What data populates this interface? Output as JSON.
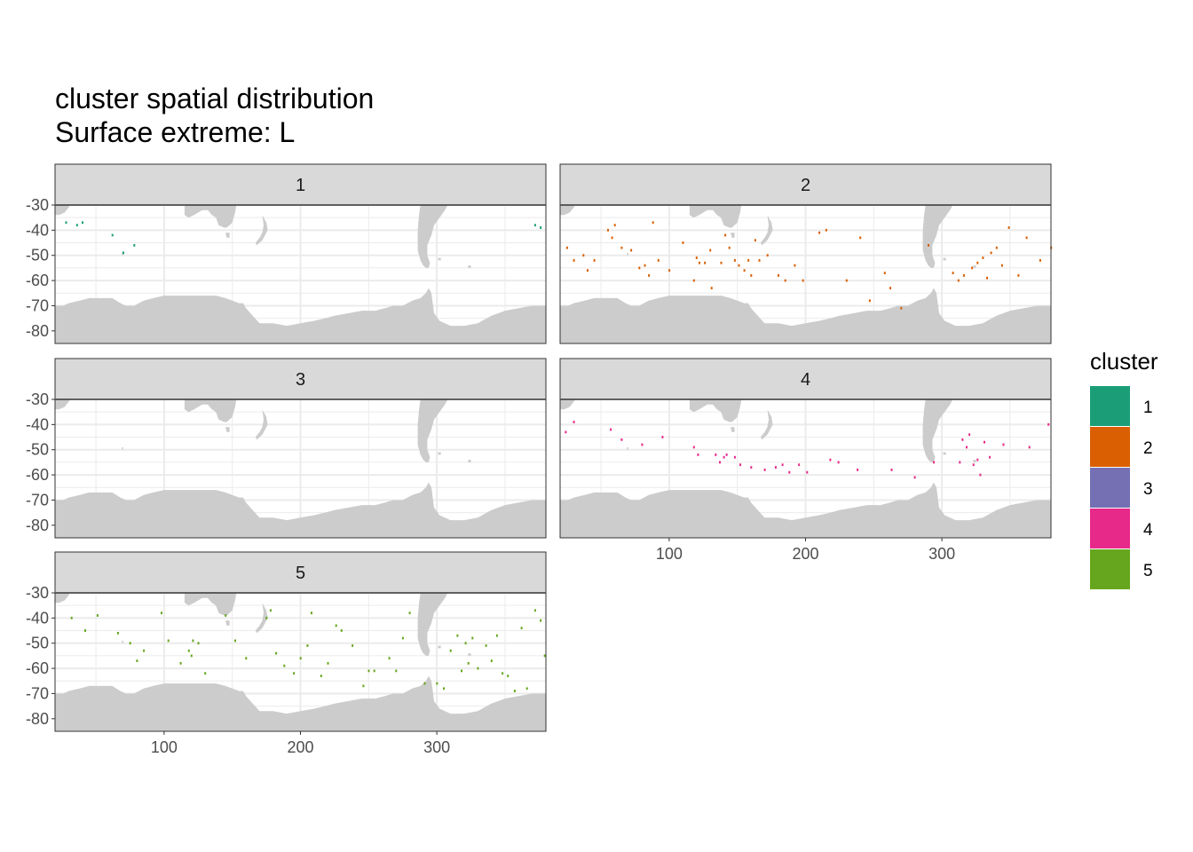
{
  "title": "cluster spatial distribution",
  "subtitle": "Surface extreme: L",
  "colors": {
    "cluster_1": "#1b9e77",
    "cluster_2": "#d95f02",
    "cluster_3": "#7570b3",
    "cluster_4": "#e7298a",
    "cluster_5": "#66a61e",
    "land": "#cccccc",
    "grid": "#ebebeb",
    "strip_background": "#d9d9d9"
  },
  "chart_data": {
    "type": "heatmap",
    "title": "cluster spatial distribution",
    "subtitle": "Surface extreme: L",
    "facet_variable": "cluster",
    "facets": [
      "1",
      "2",
      "3",
      "4",
      "5"
    ],
    "x_ticks": [
      100,
      200,
      300
    ],
    "y_ticks": [
      -30,
      -40,
      -50,
      -60,
      -70,
      -80
    ],
    "y_tick_labels": [
      "-30",
      "-40",
      "-50",
      "-60",
      "-70",
      "-80"
    ],
    "xlim": [
      20,
      380
    ],
    "ylim": [
      -85,
      -30
    ],
    "grid": true,
    "legend": {
      "title": "cluster",
      "position": "right",
      "entries": [
        "1",
        "2",
        "3",
        "4",
        "5"
      ]
    },
    "points": {
      "1": [
        [
          28,
          -37
        ],
        [
          36,
          -38
        ],
        [
          40,
          -37
        ],
        [
          62,
          -42
        ],
        [
          70,
          -49
        ],
        [
          78,
          -46
        ],
        [
          372,
          -38
        ],
        [
          376,
          -39
        ]
      ],
      "2": [
        [
          25,
          -47
        ],
        [
          30,
          -52
        ],
        [
          37,
          -50
        ],
        [
          40,
          -56
        ],
        [
          45,
          -52
        ],
        [
          55,
          -40
        ],
        [
          58,
          -43
        ],
        [
          60,
          -38
        ],
        [
          65,
          -47
        ],
        [
          72,
          -48
        ],
        [
          78,
          -55
        ],
        [
          82,
          -54
        ],
        [
          85,
          -58
        ],
        [
          88,
          -37
        ],
        [
          92,
          -52
        ],
        [
          100,
          -56
        ],
        [
          110,
          -45
        ],
        [
          118,
          -60
        ],
        [
          120,
          -51
        ],
        [
          122,
          -53
        ],
        [
          126,
          -53
        ],
        [
          130,
          -48
        ],
        [
          131,
          -63
        ],
        [
          138,
          -53
        ],
        [
          141,
          -42
        ],
        [
          144,
          -47
        ],
        [
          148,
          -52
        ],
        [
          151,
          -54
        ],
        [
          155,
          -56
        ],
        [
          158,
          -52
        ],
        [
          160,
          -58
        ],
        [
          163,
          -44
        ],
        [
          166,
          -52
        ],
        [
          172,
          -50
        ],
        [
          180,
          -58
        ],
        [
          185,
          -60
        ],
        [
          192,
          -54
        ],
        [
          198,
          -60
        ],
        [
          210,
          -41
        ],
        [
          215,
          -40
        ],
        [
          230,
          -60
        ],
        [
          240,
          -43
        ],
        [
          247,
          -68
        ],
        [
          258,
          -57
        ],
        [
          262,
          -63
        ],
        [
          270,
          -71
        ],
        [
          290,
          -46
        ],
        [
          308,
          -57
        ],
        [
          312,
          -60
        ],
        [
          316,
          -58
        ],
        [
          322,
          -55
        ],
        [
          326,
          -53
        ],
        [
          330,
          -51
        ],
        [
          333,
          -59
        ],
        [
          336,
          -49
        ],
        [
          340,
          -47
        ],
        [
          344,
          -54
        ],
        [
          349,
          -39
        ],
        [
          356,
          -58
        ],
        [
          362,
          -43
        ],
        [
          372,
          -52
        ],
        [
          380,
          -47
        ]
      ],
      "3": [],
      "4": [
        [
          24,
          -43
        ],
        [
          30,
          -39
        ],
        [
          57,
          -42
        ],
        [
          65,
          -46
        ],
        [
          80,
          -48
        ],
        [
          95,
          -45
        ],
        [
          118,
          -49
        ],
        [
          121,
          -52
        ],
        [
          134,
          -52
        ],
        [
          137,
          -55
        ],
        [
          140,
          -53
        ],
        [
          142,
          -52
        ],
        [
          148,
          -53
        ],
        [
          152,
          -56
        ],
        [
          160,
          -57
        ],
        [
          170,
          -58
        ],
        [
          178,
          -57
        ],
        [
          183,
          -56
        ],
        [
          188,
          -59
        ],
        [
          195,
          -56
        ],
        [
          201,
          -59
        ],
        [
          218,
          -54
        ],
        [
          224,
          -55
        ],
        [
          238,
          -58
        ],
        [
          263,
          -58
        ],
        [
          280,
          -61
        ],
        [
          294,
          -55
        ],
        [
          313,
          -55
        ],
        [
          315,
          -46
        ],
        [
          318,
          -49
        ],
        [
          320,
          -44
        ],
        [
          323,
          -56
        ],
        [
          326,
          -54
        ],
        [
          328,
          -60
        ],
        [
          331,
          -47
        ],
        [
          335,
          -53
        ],
        [
          345,
          -48
        ],
        [
          364,
          -49
        ],
        [
          378,
          -40
        ]
      ],
      "5": [
        [
          32,
          -40
        ],
        [
          42,
          -45
        ],
        [
          51,
          -39
        ],
        [
          66,
          -46
        ],
        [
          75,
          -50
        ],
        [
          80,
          -57
        ],
        [
          85,
          -53
        ],
        [
          98,
          -38
        ],
        [
          103,
          -49
        ],
        [
          112,
          -58
        ],
        [
          118,
          -53
        ],
        [
          120,
          -55
        ],
        [
          121,
          -49
        ],
        [
          125,
          -50
        ],
        [
          130,
          -62
        ],
        [
          145,
          -39
        ],
        [
          152,
          -49
        ],
        [
          160,
          -56
        ],
        [
          175,
          -40
        ],
        [
          178,
          -37
        ],
        [
          182,
          -54
        ],
        [
          188,
          -59
        ],
        [
          195,
          -62
        ],
        [
          200,
          -56
        ],
        [
          205,
          -51
        ],
        [
          208,
          -38
        ],
        [
          215,
          -63
        ],
        [
          220,
          -58
        ],
        [
          226,
          -43
        ],
        [
          230,
          -45
        ],
        [
          238,
          -51
        ],
        [
          246,
          -67
        ],
        [
          250,
          -61
        ],
        [
          254,
          -61
        ],
        [
          265,
          -56
        ],
        [
          270,
          -61
        ],
        [
          275,
          -48
        ],
        [
          280,
          -38
        ],
        [
          291,
          -66
        ],
        [
          300,
          -66
        ],
        [
          305,
          -68
        ],
        [
          310,
          -53
        ],
        [
          315,
          -47
        ],
        [
          318,
          -61
        ],
        [
          321,
          -50
        ],
        [
          323,
          -58
        ],
        [
          326,
          -48
        ],
        [
          330,
          -60
        ],
        [
          336,
          -51
        ],
        [
          340,
          -57
        ],
        [
          344,
          -47
        ],
        [
          348,
          -62
        ],
        [
          352,
          -63
        ],
        [
          357,
          -69
        ],
        [
          362,
          -44
        ],
        [
          366,
          -68
        ],
        [
          372,
          -37
        ],
        [
          376,
          -41
        ],
        [
          379,
          -55
        ]
      ]
    }
  }
}
